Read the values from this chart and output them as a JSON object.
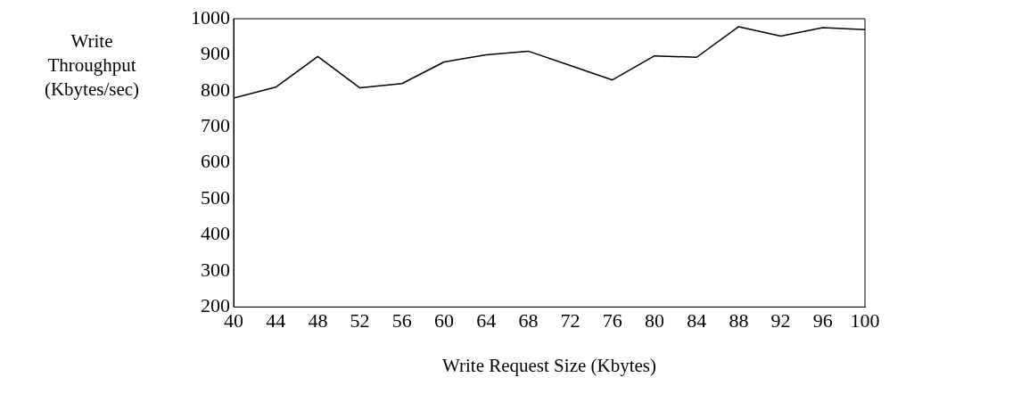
{
  "chart_data": {
    "type": "line",
    "xlabel": "Write Request Size (Kbytes)",
    "ylabel": "Write Throughput (Kbytes/sec)",
    "x": [
      40,
      44,
      48,
      52,
      56,
      60,
      64,
      68,
      72,
      76,
      80,
      84,
      88,
      92,
      96,
      100
    ],
    "series": [
      {
        "color": "#000000",
        "values": [
          780,
          810,
          895,
          808,
          820,
          880,
          900,
          910,
          870,
          830,
          897,
          893,
          978,
          952,
          975,
          970
        ]
      }
    ],
    "xlim": [
      40,
      100
    ],
    "xticks": [
      40,
      44,
      48,
      52,
      56,
      60,
      64,
      68,
      72,
      76,
      80,
      84,
      88,
      92,
      96,
      100
    ],
    "ylim": [
      200,
      1000
    ],
    "yticks": [
      200,
      300,
      400,
      500,
      600,
      700,
      800,
      900,
      1000
    ],
    "grid": false,
    "legend": false,
    "marker": "none",
    "line_style": "solid"
  }
}
